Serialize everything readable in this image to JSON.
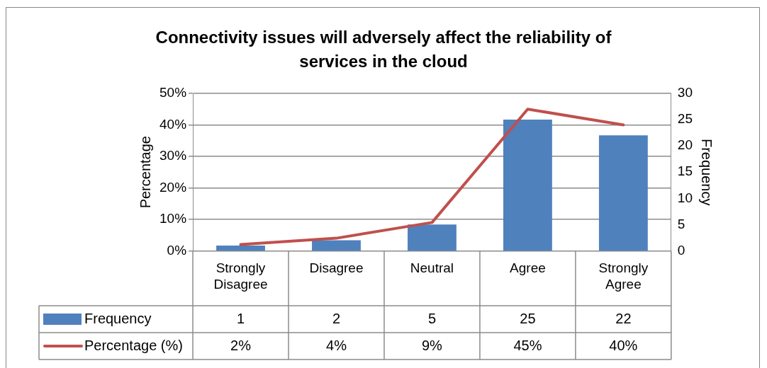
{
  "chart_data": {
    "type": "bar",
    "title": "Connectivity issues will adversely affect the reliability of services in the cloud",
    "ylabel": "Percentage",
    "y2label": "Frequency",
    "categories": [
      "Strongly Disagree",
      "Disagree",
      "Neutral",
      "Agree",
      "Strongly Agree"
    ],
    "series": [
      {
        "name": "Frequency",
        "color": "#4f81bd",
        "axis": "y2",
        "values": [
          1,
          2,
          5,
          25,
          22
        ],
        "value_labels": [
          "1",
          "2",
          "5",
          "25",
          "22"
        ]
      },
      {
        "name": "Percentage (%)",
        "type": "line",
        "color": "#c0504d",
        "values": [
          2,
          4,
          9,
          45,
          40
        ],
        "value_labels": [
          "2%",
          "4%",
          "9%",
          "45%",
          "40%"
        ]
      }
    ],
    "ylim": [
      0,
      50
    ],
    "yticks": [
      {
        "value": 0,
        "label": "0%"
      },
      {
        "value": 10,
        "label": "10%"
      },
      {
        "value": 20,
        "label": "20%"
      },
      {
        "value": 30,
        "label": "30%"
      },
      {
        "value": 40,
        "label": "40%"
      },
      {
        "value": 50,
        "label": "50%"
      }
    ],
    "y2lim": [
      0,
      30
    ],
    "y2ticks": [
      0,
      5,
      10,
      15,
      20,
      25,
      30
    ],
    "grid": "y",
    "legend": "bottom",
    "marker": "none",
    "line_style": "solid"
  }
}
